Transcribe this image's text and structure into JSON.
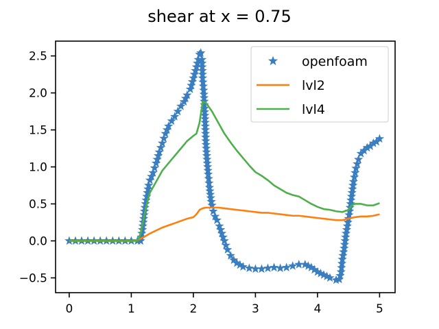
{
  "chart_data": {
    "type": "line",
    "title": "shear at x = 0.75",
    "xlabel": "",
    "ylabel": "",
    "xlim": [
      -0.22,
      5.25
    ],
    "ylim": [
      -0.7,
      2.7
    ],
    "xticks": [
      0,
      1,
      2,
      3,
      4,
      5
    ],
    "xtick_labels": [
      "0",
      "1",
      "2",
      "3",
      "4",
      "5"
    ],
    "yticks": [
      -0.5,
      0.0,
      0.5,
      1.0,
      1.5,
      2.0,
      2.5
    ],
    "ytick_labels": [
      "−0.5",
      "0.0",
      "0.5",
      "1.0",
      "1.5",
      "2.0",
      "2.5"
    ],
    "grid": false,
    "legend_position": "top-right",
    "series": [
      {
        "name": "openfoam",
        "style": "star-markers",
        "color": "#3a7ebf",
        "x": [
          0.0,
          0.1,
          0.2,
          0.3,
          0.4,
          0.5,
          0.6,
          0.7,
          0.8,
          0.9,
          1.0,
          1.1,
          1.15,
          1.18,
          1.2,
          1.22,
          1.25,
          1.28,
          1.3,
          1.35,
          1.4,
          1.45,
          1.5,
          1.55,
          1.6,
          1.65,
          1.7,
          1.75,
          1.8,
          1.85,
          1.9,
          1.95,
          2.0,
          2.05,
          2.08,
          2.1,
          2.12,
          2.14,
          2.15,
          2.17,
          2.19,
          2.2,
          2.22,
          2.24,
          2.26,
          2.28,
          2.3,
          2.32,
          2.35,
          2.38,
          2.42,
          2.46,
          2.5,
          2.55,
          2.6,
          2.65,
          2.7,
          2.8,
          2.9,
          3.0,
          3.1,
          3.2,
          3.3,
          3.4,
          3.5,
          3.6,
          3.7,
          3.8,
          3.9,
          4.0,
          4.1,
          4.2,
          4.3,
          4.35,
          4.38,
          4.4,
          4.43,
          4.46,
          4.5,
          4.54,
          4.58,
          4.62,
          4.66,
          4.7,
          4.75,
          4.8,
          4.85,
          4.9,
          4.95,
          5.0
        ],
        "y": [
          0.0,
          0.0,
          0.0,
          0.0,
          0.0,
          0.0,
          0.0,
          0.0,
          0.0,
          0.0,
          0.0,
          0.0,
          0.0,
          0.15,
          0.3,
          0.45,
          0.6,
          0.75,
          0.82,
          0.92,
          1.05,
          1.2,
          1.32,
          1.45,
          1.55,
          1.62,
          1.68,
          1.75,
          1.82,
          1.88,
          1.97,
          2.05,
          2.2,
          2.35,
          2.45,
          2.52,
          2.54,
          2.45,
          2.2,
          1.98,
          1.6,
          1.35,
          1.1,
          0.9,
          0.72,
          0.58,
          0.48,
          0.4,
          0.33,
          0.28,
          0.2,
          0.1,
          0.0,
          -0.12,
          -0.2,
          -0.26,
          -0.3,
          -0.35,
          -0.37,
          -0.38,
          -0.38,
          -0.37,
          -0.36,
          -0.37,
          -0.36,
          -0.34,
          -0.32,
          -0.32,
          -0.36,
          -0.42,
          -0.46,
          -0.5,
          -0.53,
          -0.52,
          -0.42,
          -0.25,
          -0.1,
          0.1,
          0.3,
          0.55,
          0.8,
          0.98,
          1.1,
          1.18,
          1.22,
          1.26,
          1.28,
          1.32,
          1.34,
          1.38
        ]
      },
      {
        "name": "lvl2",
        "style": "line",
        "color": "#ff7f0e",
        "x": [
          0.0,
          0.5,
          1.0,
          1.1,
          1.2,
          1.3,
          1.4,
          1.5,
          1.6,
          1.7,
          1.8,
          1.9,
          2.0,
          2.05,
          2.1,
          2.15,
          2.2,
          2.3,
          2.4,
          2.5,
          2.6,
          2.7,
          2.8,
          2.9,
          3.0,
          3.1,
          3.2,
          3.3,
          3.4,
          3.5,
          3.6,
          3.7,
          3.8,
          3.9,
          4.0,
          4.1,
          4.2,
          4.3,
          4.4,
          4.5,
          4.6,
          4.7,
          4.8,
          4.9,
          5.0
        ],
        "y": [
          0.0,
          0.0,
          0.0,
          0.01,
          0.05,
          0.1,
          0.14,
          0.18,
          0.21,
          0.24,
          0.27,
          0.3,
          0.32,
          0.36,
          0.42,
          0.44,
          0.45,
          0.45,
          0.45,
          0.44,
          0.43,
          0.42,
          0.41,
          0.4,
          0.39,
          0.38,
          0.38,
          0.37,
          0.36,
          0.35,
          0.34,
          0.34,
          0.33,
          0.32,
          0.31,
          0.3,
          0.29,
          0.28,
          0.28,
          0.3,
          0.32,
          0.33,
          0.33,
          0.34,
          0.36
        ]
      },
      {
        "name": "lvl4",
        "style": "line",
        "color": "#4daf4a",
        "x": [
          0.0,
          0.5,
          1.0,
          1.1,
          1.15,
          1.2,
          1.25,
          1.3,
          1.4,
          1.5,
          1.6,
          1.7,
          1.8,
          1.9,
          2.0,
          2.05,
          2.1,
          2.15,
          2.2,
          2.3,
          2.4,
          2.5,
          2.6,
          2.7,
          2.8,
          2.9,
          3.0,
          3.1,
          3.2,
          3.3,
          3.4,
          3.5,
          3.6,
          3.7,
          3.8,
          3.9,
          4.0,
          4.1,
          4.2,
          4.3,
          4.4,
          4.5,
          4.55,
          4.6,
          4.7,
          4.8,
          4.9,
          5.0
        ],
        "y": [
          0.0,
          0.0,
          0.0,
          0.0,
          0.1,
          0.3,
          0.5,
          0.65,
          0.8,
          0.95,
          1.05,
          1.15,
          1.25,
          1.35,
          1.42,
          1.45,
          1.6,
          1.88,
          1.87,
          1.75,
          1.6,
          1.45,
          1.33,
          1.22,
          1.12,
          1.02,
          0.93,
          0.88,
          0.82,
          0.75,
          0.7,
          0.65,
          0.62,
          0.6,
          0.55,
          0.5,
          0.46,
          0.43,
          0.42,
          0.4,
          0.39,
          0.42,
          0.48,
          0.5,
          0.5,
          0.48,
          0.48,
          0.51
        ]
      }
    ]
  }
}
